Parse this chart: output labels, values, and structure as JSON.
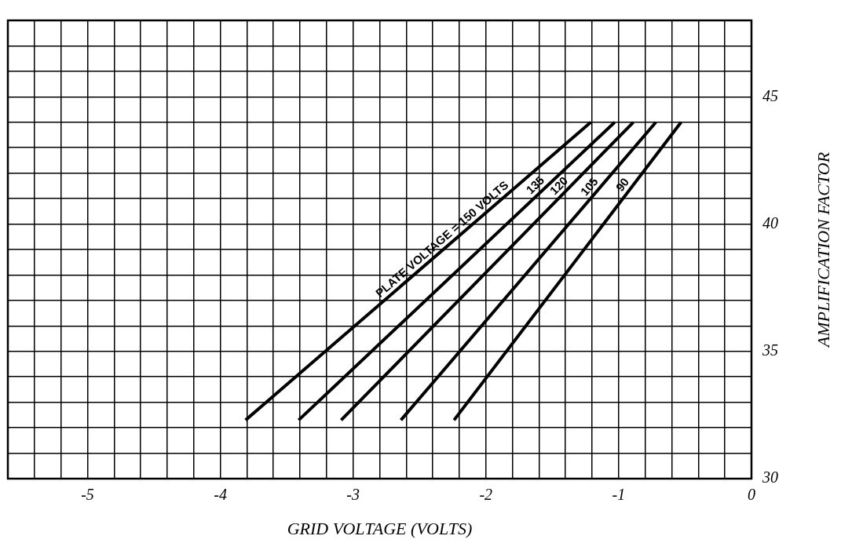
{
  "chart_data": {
    "type": "line",
    "xlabel": "GRID VOLTAGE (VOLTS)",
    "ylabel": "AMPLIFICATION FACTOR",
    "xlim": [
      -5.6,
      0
    ],
    "ylim": [
      30,
      48
    ],
    "xticks": [
      {
        "value": -5.6,
        "label": null
      },
      {
        "value": -5.4,
        "label": null
      },
      {
        "value": -5.2,
        "label": null
      },
      -5,
      {
        "value": -4.8,
        "label": null
      },
      {
        "value": -4.6,
        "label": null
      },
      {
        "value": -4.4,
        "label": null
      },
      {
        "value": -4.2,
        "label": null
      },
      -4,
      {
        "value": -3.8,
        "label": null
      },
      {
        "value": -3.6,
        "label": null
      },
      {
        "value": -3.4,
        "label": null
      },
      {
        "value": -3.2,
        "label": null
      },
      -3,
      {
        "value": -2.8,
        "label": null
      },
      {
        "value": -2.6,
        "label": null
      },
      {
        "value": -2.4,
        "label": null
      },
      {
        "value": -2.2,
        "label": null
      },
      -2,
      {
        "value": -1.8,
        "label": null
      },
      {
        "value": -1.6,
        "label": null
      },
      {
        "value": -1.4,
        "label": null
      },
      {
        "value": -1.2,
        "label": null
      },
      -1,
      {
        "value": -0.8,
        "label": null
      },
      {
        "value": -0.6,
        "label": null
      },
      {
        "value": -0.4,
        "label": null
      },
      {
        "value": -0.2,
        "label": null
      },
      0
    ],
    "yticks": [
      30,
      {
        "value": 31,
        "label": null
      },
      {
        "value": 32,
        "label": null
      },
      {
        "value": 33,
        "label": null
      },
      {
        "value": 34,
        "label": null
      },
      35,
      {
        "value": 36,
        "label": null
      },
      {
        "value": 37,
        "label": null
      },
      {
        "value": 38,
        "label": null
      },
      {
        "value": 39,
        "label": null
      },
      40,
      {
        "value": 41,
        "label": null
      },
      {
        "value": 42,
        "label": null
      },
      {
        "value": 43,
        "label": null
      },
      {
        "value": 44,
        "label": null
      },
      45,
      {
        "value": 46,
        "label": null
      },
      {
        "value": 47,
        "label": null
      },
      {
        "value": 48,
        "label": null
      }
    ],
    "grid": true,
    "legend": false,
    "series": [
      {
        "name": "PLATE VOLTAGE = 150 VOLTS",
        "color": "#000000",
        "x": [
          -3.81,
          -1.21
        ],
        "values": [
          32.3,
          44.0
        ]
      },
      {
        "name": "135",
        "color": "#000000",
        "x": [
          -3.41,
          -1.03
        ],
        "values": [
          32.3,
          44.0
        ]
      },
      {
        "name": "120",
        "color": "#000000",
        "x": [
          -3.09,
          -0.89
        ],
        "values": [
          32.3,
          44.0
        ]
      },
      {
        "name": "105",
        "color": "#000000",
        "x": [
          -2.64,
          -0.72
        ],
        "values": [
          32.3,
          44.0
        ]
      },
      {
        "name": "90",
        "color": "#000000",
        "x": [
          -2.24,
          -0.53
        ],
        "values": [
          32.3,
          44.0
        ]
      }
    ]
  }
}
